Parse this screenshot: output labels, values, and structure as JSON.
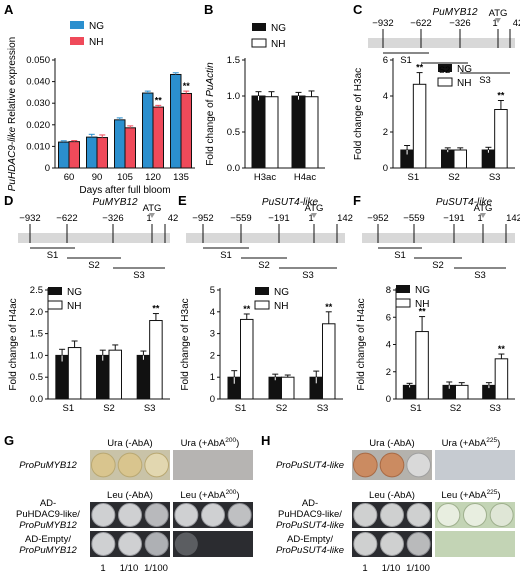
{
  "colors": {
    "ng_blue": "#2b8fce",
    "nh_red": "#ef4a5a",
    "black_bar": "#111111",
    "white_bar": "#ffffff",
    "promoter_band": "#d8d8d8",
    "plate_beige": "#c9c3a8",
    "colony_beige": "#d9c58e",
    "plate_dark": "#2b2c30",
    "colony_light": "#cfd0d2",
    "plate_green": "#c3d4b5",
    "panelH_top": "#b4b2ad",
    "colony_gray": "#cfd0d0",
    "colony_orange": "#cb8b61"
  },
  "panels": {
    "A": {
      "letter": "A"
    },
    "B": {
      "letter": "B"
    },
    "C": {
      "letter": "C"
    },
    "D": {
      "letter": "D"
    },
    "E": {
      "letter": "E"
    },
    "F": {
      "letter": "F"
    },
    "G": {
      "letter": "G"
    },
    "H": {
      "letter": "H"
    }
  },
  "chart_data": [
    {
      "id": "A",
      "type": "bar",
      "title": "",
      "ylabel_italic": "PuHDAC9-like",
      "ylabel_rest": " Relative expression",
      "xlabel": "Days after full bloom",
      "categories": [
        "60",
        "90",
        "105",
        "120",
        "135"
      ],
      "ylim": [
        0,
        0.05
      ],
      "yticks": [
        "0",
        "0.010",
        "0.020",
        "0.030",
        "0.040",
        "0.050"
      ],
      "series": [
        {
          "name": "NG",
          "color": "#2b8fce",
          "values": [
            0.012,
            0.0143,
            0.0223,
            0.0347,
            0.0433
          ],
          "errors": [
            0.0006,
            0.0013,
            0.0009,
            0.0009,
            0.0008
          ]
        },
        {
          "name": "NH",
          "color": "#ef4a5a",
          "values": [
            0.0122,
            0.0141,
            0.0186,
            0.0282,
            0.0345
          ],
          "errors": [
            0.0005,
            0.0012,
            0.0009,
            0.0008,
            0.0011
          ]
        }
      ],
      "significance": [
        {
          "category_index": 3,
          "label": "**"
        },
        {
          "category_index": 4,
          "label": "**"
        }
      ],
      "legend": "top-left"
    },
    {
      "id": "B",
      "type": "bar",
      "ylabel_prefix": "Fold change of ",
      "ylabel_italic": "PuActin",
      "categories": [
        "H3ac",
        "H4ac"
      ],
      "ylim": [
        0,
        1.5
      ],
      "yticks": [
        "0.0",
        "0.5",
        "1.0",
        "1.5"
      ],
      "series": [
        {
          "name": "NG",
          "color": "#111111",
          "values": [
            1.0,
            1.0
          ],
          "errors": [
            0.06,
            0.05
          ]
        },
        {
          "name": "NH",
          "color": "#ffffff",
          "values": [
            0.99,
            0.99
          ],
          "errors": [
            0.07,
            0.08
          ]
        }
      ],
      "legend": "top"
    },
    {
      "id": "C",
      "type": "bar",
      "ylabel": "Fold change of H3ac",
      "categories": [
        "S1",
        "S2",
        "S3"
      ],
      "ylim": [
        0,
        6
      ],
      "yticks": [
        "0",
        "2",
        "4",
        "6"
      ],
      "series": [
        {
          "name": "NG",
          "color": "#111111",
          "values": [
            1.0,
            1.0,
            1.0
          ],
          "errors": [
            0.25,
            0.12,
            0.15
          ]
        },
        {
          "name": "NH",
          "color": "#ffffff",
          "values": [
            4.65,
            1.0,
            3.25
          ],
          "errors": [
            0.65,
            0.12,
            0.5
          ]
        }
      ],
      "significance": [
        {
          "category_index": 0,
          "label": "**"
        },
        {
          "category_index": 2,
          "label": "**"
        }
      ],
      "legend": "top-right"
    },
    {
      "id": "D",
      "type": "bar",
      "ylabel": "Fold change of H4ac",
      "categories": [
        "S1",
        "S2",
        "S3"
      ],
      "ylim": [
        0,
        2.5
      ],
      "yticks": [
        "0.0",
        "0.5",
        "1.0",
        "1.5",
        "2.0",
        "2.5"
      ],
      "series": [
        {
          "name": "NG",
          "color": "#111111",
          "values": [
            1.0,
            1.0,
            1.0
          ],
          "errors": [
            0.14,
            0.12,
            0.1
          ]
        },
        {
          "name": "NH",
          "color": "#ffffff",
          "values": [
            1.18,
            1.12,
            1.8
          ],
          "errors": [
            0.15,
            0.12,
            0.16
          ]
        }
      ],
      "significance": [
        {
          "category_index": 2,
          "label": "**"
        }
      ],
      "legend": "top-left"
    },
    {
      "id": "E",
      "type": "bar",
      "ylabel": "Fold change of H3ac",
      "categories": [
        "S1",
        "S2",
        "S3"
      ],
      "ylim": [
        0,
        5
      ],
      "yticks": [
        "0",
        "1",
        "2",
        "3",
        "4",
        "5"
      ],
      "series": [
        {
          "name": "NG",
          "color": "#111111",
          "values": [
            1.0,
            1.0,
            1.0
          ],
          "errors": [
            0.3,
            0.14,
            0.28
          ]
        },
        {
          "name": "NH",
          "color": "#ffffff",
          "values": [
            3.65,
            1.0,
            3.45
          ],
          "errors": [
            0.25,
            0.1,
            0.55
          ]
        }
      ],
      "significance": [
        {
          "category_index": 0,
          "label": "**"
        },
        {
          "category_index": 2,
          "label": "**"
        }
      ],
      "legend": "top-right"
    },
    {
      "id": "F",
      "type": "bar",
      "ylabel": "Fold change of H4ac",
      "categories": [
        "S1",
        "S2",
        "S3"
      ],
      "ylim": [
        0,
        8
      ],
      "yticks": [
        "0",
        "2",
        "4",
        "6",
        "8"
      ],
      "series": [
        {
          "name": "NG",
          "color": "#111111",
          "values": [
            1.0,
            1.0,
            1.0
          ],
          "errors": [
            0.15,
            0.25,
            0.2
          ]
        },
        {
          "name": "NH",
          "color": "#ffffff",
          "values": [
            4.95,
            1.0,
            2.95
          ],
          "errors": [
            1.1,
            0.2,
            0.35
          ]
        }
      ],
      "significance": [
        {
          "category_index": 0,
          "label": "**"
        },
        {
          "category_index": 2,
          "label": "**"
        }
      ],
      "legend": "top-left"
    }
  ],
  "promoters": {
    "C": {
      "gene": "PuMYB12",
      "positions": [
        "-932",
        "-622",
        "-326",
        "1",
        "42"
      ],
      "atg": "ATG",
      "segments": [
        "S1",
        "S2",
        "S3"
      ]
    },
    "D": {
      "gene": "PuMYB12",
      "positions": [
        "-932",
        "-622",
        "-326",
        "1",
        "42"
      ],
      "atg": "ATG",
      "segments": [
        "S1",
        "S2",
        "S3"
      ]
    },
    "E": {
      "gene": "PuSUT4-like",
      "positions": [
        "-952",
        "-559",
        "-191",
        "1",
        "142"
      ],
      "atg": "ATG",
      "segments": [
        "S1",
        "S2",
        "S3"
      ]
    },
    "F": {
      "gene": "PuSUT4-like",
      "positions": [
        "-952",
        "-559",
        "-191",
        "1",
        "142"
      ],
      "atg": "ATG",
      "segments": [
        "S1",
        "S2",
        "S3"
      ]
    }
  },
  "yeast": {
    "G": {
      "col1_top": "Ura (-AbA)",
      "col2_top_pre": "Ura (+AbA",
      "col2_top_sup": "200",
      "col2_top_post": ")",
      "col1_mid": "Leu (-AbA)",
      "col2_mid_pre": "Leu (+AbA",
      "col2_mid_sup": "200",
      "col2_mid_post": ")",
      "row1": "ProPuMYB12",
      "row2_a": "AD-",
      "row2_b": "PuHDAC9-like/",
      "row2_c": "ProPuMYB12",
      "row3_a": "AD-Empty/",
      "row3_b": "ProPuMYB12",
      "dilutions": [
        "1",
        "1/10",
        "1/100"
      ]
    },
    "H": {
      "col1_top": "Ura (-AbA)",
      "col2_top_pre": "Ura (+AbA",
      "col2_top_sup": "225",
      "col2_top_post": ")",
      "col1_mid": "Leu (-AbA)",
      "col2_mid_pre": "Leu (+AbA",
      "col2_mid_sup": "225",
      "col2_mid_post": ")",
      "row1": "ProPuSUT4-like",
      "row2_a": "AD-",
      "row2_b": "PuHDAC9-like/",
      "row2_c": "ProPuSUT4-like",
      "row3_a": "AD-Empty/",
      "row3_b": "ProPuSUT4-like",
      "dilutions": [
        "1",
        "1/10",
        "1/100"
      ]
    }
  }
}
